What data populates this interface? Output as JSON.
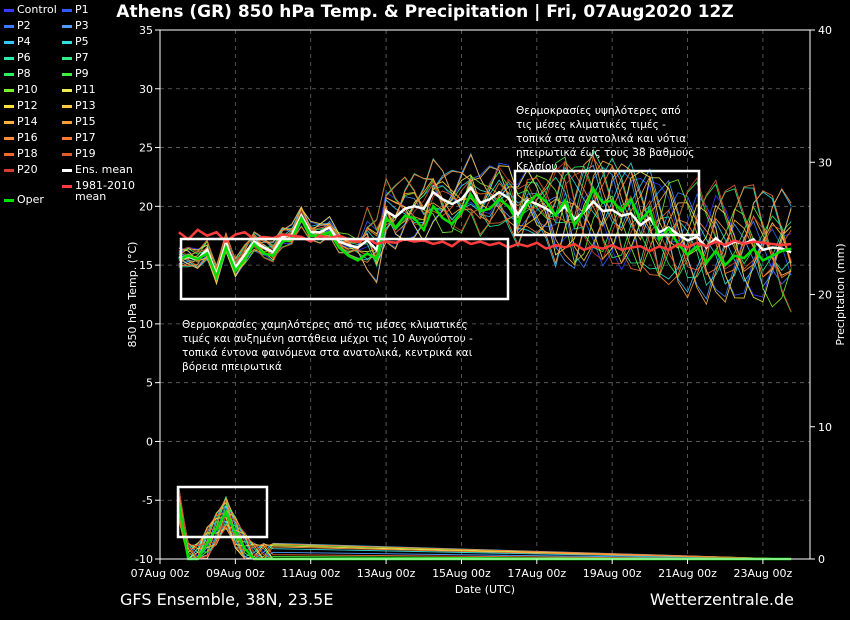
{
  "title": "Athens  (GR)  850 hPa Temp. & Precipitation | Fri, 07Aug2020 12Z",
  "footer": {
    "model": "GFS Ensemble, 38N, 23.5E",
    "site": "Wetterzentrale.de"
  },
  "colors": {
    "background": "#000000",
    "oper": "#00e000",
    "ens_mean": "#ffffff",
    "clim": "#ff3b3b"
  },
  "legend": [
    {
      "label": "Control",
      "color": "#3a3aff"
    },
    {
      "label": "P1",
      "color": "#2c5cff"
    },
    {
      "label": "P2",
      "color": "#3b7cff"
    },
    {
      "label": "P3",
      "color": "#4d9dff"
    },
    {
      "label": "P4",
      "color": "#39c6ff"
    },
    {
      "label": "P5",
      "color": "#31e0e0"
    },
    {
      "label": "P6",
      "color": "#2ee8b0"
    },
    {
      "label": "P7",
      "color": "#2ef08a"
    },
    {
      "label": "P8",
      "color": "#30f060"
    },
    {
      "label": "P9",
      "color": "#40f040"
    },
    {
      "label": "P10",
      "color": "#7cf030"
    },
    {
      "label": "P11",
      "color": "#eeee50"
    },
    {
      "label": "P12",
      "color": "#ffe040"
    },
    {
      "label": "P13",
      "color": "#ffc840"
    },
    {
      "label": "P14",
      "color": "#ffb040"
    },
    {
      "label": "P15",
      "color": "#ff9c3a"
    },
    {
      "label": "P16",
      "color": "#ff8c3a"
    },
    {
      "label": "P17",
      "color": "#ff7a30"
    },
    {
      "label": "P18",
      "color": "#f06a30"
    },
    {
      "label": "P19",
      "color": "#e05a2a"
    },
    {
      "label": "P20",
      "color": "#d04030"
    },
    {
      "label": "Ens. mean",
      "color": "#ffffff"
    },
    {
      "label": "Oper",
      "color": "#00e000"
    },
    {
      "label": "1981-2010 mean",
      "color": "#ff3b3b"
    }
  ],
  "annotations": {
    "left": "Θερμοκρασίες χαμηλότερες από τις μέσες κλιματικές τιμές και αυξημένη αστάθεια μέχρι τις 10 Αυγούστου - τοπικά έντονα φαινόμενα στα ανατολικά, κεντρικά και βόρεια ηπειρωτικά",
    "right": "Θερμοκρασίες υψηλότερες από τις μέσες κλιματικές τιμές - τοπικά στα ανατολικά και νότια ηπειρωτικά έως τους 38 βαθμούς Κελσίου"
  },
  "chart_data": {
    "type": "line",
    "xlabel": "Date (UTC)",
    "ylabel": "850 hPa Temp. (°C)",
    "y2label": "Precipitation (mm)",
    "ylim": [
      -10,
      35
    ],
    "y2lim": [
      0,
      40
    ],
    "xlim": [
      "07Aug 00z",
      "24Aug 12z"
    ],
    "x_ticks": [
      "07Aug 00z",
      "09Aug 00z",
      "11Aug 00z",
      "13Aug 00z",
      "15Aug 00z",
      "17Aug 00z",
      "19Aug 00z",
      "21Aug 00z",
      "23Aug 00z"
    ],
    "y_ticks": [
      -10,
      -5,
      0,
      5,
      10,
      15,
      20,
      25,
      30,
      35
    ],
    "y2_ticks": [
      0,
      10,
      20,
      30,
      40
    ],
    "grid": true,
    "x_hours": [
      12,
      18,
      24,
      30,
      36,
      42,
      48,
      54,
      60,
      66,
      72,
      78,
      84,
      90,
      96,
      102,
      108,
      114,
      120,
      126,
      132,
      138,
      144,
      150,
      156,
      162,
      168,
      174,
      180,
      186,
      192,
      198,
      204,
      210,
      216,
      222,
      228,
      234,
      240,
      246,
      252,
      258,
      264,
      270,
      276,
      282,
      288,
      294,
      300,
      306,
      312,
      318,
      324,
      330,
      336,
      342,
      348,
      354,
      360,
      366,
      372,
      378,
      384,
      390,
      396,
      402
    ],
    "x_hours_note": "hours after 07Aug 00z",
    "series": [
      {
        "name": "Ens. mean",
        "values": [
          15.6,
          15.7,
          15.5,
          16.3,
          14.2,
          16.9,
          14.8,
          15.9,
          17.0,
          16.5,
          16.1,
          17.4,
          17.6,
          19.2,
          17.8,
          17.8,
          18.2,
          17.0,
          16.7,
          16.5,
          17.1,
          16.3,
          19.6,
          19.1,
          19.8,
          20.0,
          19.8,
          21.2,
          20.6,
          20.2,
          20.6,
          21.6,
          20.3,
          20.6,
          21.2,
          20.7,
          19.3,
          20.5,
          20.2,
          19.8,
          19.3,
          20.0,
          18.9,
          19.5,
          20.4,
          19.6,
          19.7,
          19.2,
          19.4,
          18.4,
          19.0,
          17.8,
          18.2,
          17.6,
          17.1,
          17.4,
          16.5,
          17.3,
          16.6,
          17.0,
          16.8,
          17.2,
          16.3,
          16.5,
          16.4,
          16.1
        ]
      },
      {
        "name": "Oper",
        "values": [
          15.5,
          15.8,
          15.5,
          16.0,
          14.0,
          16.5,
          14.5,
          15.5,
          16.8,
          16.0,
          15.8,
          17.0,
          17.2,
          19.0,
          17.5,
          17.5,
          17.8,
          16.5,
          15.8,
          15.4,
          16.0,
          15.5,
          19.0,
          18.2,
          19.2,
          19.0,
          18.0,
          20.0,
          19.0,
          18.5,
          19.5,
          21.0,
          19.6,
          19.8,
          20.6,
          20.0,
          18.6,
          20.2,
          21.0,
          20.4,
          19.2,
          20.5,
          18.4,
          19.6,
          21.5,
          20.3,
          20.5,
          19.6,
          20.6,
          18.8,
          19.7,
          17.2,
          18.1,
          16.8,
          15.9,
          16.6,
          15.2,
          16.2,
          15.0,
          15.8,
          15.6,
          16.4,
          15.4,
          15.8,
          16.2,
          16.4
        ]
      },
      {
        "name": "1981-2010 mean",
        "values": [
          17.8,
          17.2,
          18.0,
          17.5,
          17.8,
          17.0,
          17.6,
          17.8,
          17.2,
          17.4,
          17.3,
          17.6,
          17.5,
          17.4,
          17.0,
          17.5,
          17.3,
          17.5,
          17.2,
          17.0,
          17.3,
          16.8,
          17.0,
          16.9,
          17.2,
          17.0,
          17.1,
          16.8,
          17.0,
          16.6,
          17.2,
          16.8,
          17.0,
          16.7,
          16.9,
          16.5,
          16.8,
          16.6,
          16.9,
          16.4,
          16.7,
          16.5,
          16.8,
          16.3,
          16.6,
          16.4,
          16.7,
          16.3,
          16.5,
          16.6,
          16.2,
          16.6,
          16.3,
          16.8,
          16.5,
          16.9,
          16.6,
          17.0,
          16.7,
          17.1,
          16.8,
          17.0,
          16.9,
          16.8,
          16.7,
          16.8
        ]
      }
    ],
    "precipitation": {
      "x_hours": [
        12,
        18,
        24,
        30,
        36,
        42,
        48,
        54,
        60,
        66,
        72
      ],
      "values": [
        4.2,
        0.0,
        0.0,
        1.2,
        2.3,
        3.5,
        2.0,
        0.8,
        0.0,
        0.0,
        0.0
      ]
    }
  }
}
